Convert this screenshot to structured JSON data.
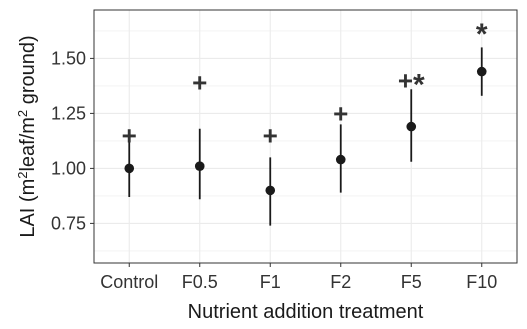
{
  "chart_data": {
    "type": "scatter",
    "categories": [
      "Control",
      "F0.5",
      "F1",
      "F2",
      "F5",
      "F10"
    ],
    "values": [
      1.0,
      1.01,
      0.9,
      1.04,
      1.19,
      1.44
    ],
    "lower": [
      0.87,
      0.86,
      0.74,
      0.89,
      1.03,
      1.33
    ],
    "upper": [
      1.13,
      1.18,
      1.05,
      1.2,
      1.36,
      1.55
    ],
    "annotations": [
      "+",
      "+",
      "+",
      "+",
      "+*",
      "*"
    ],
    "annotation_values": [
      1.15,
      1.39,
      1.15,
      1.25,
      1.4,
      1.63
    ],
    "xlabel": "Nutrient addition treatment",
    "ylabel_parts": [
      "LAI (m",
      "2",
      "leaf/m",
      "2",
      " ground)"
    ],
    "yticks": [
      0.75,
      1.0,
      1.25,
      1.5
    ],
    "ytick_labels": [
      "0.75",
      "1.00",
      "1.25",
      "1.50"
    ],
    "ylim": [
      0.57,
      1.72
    ],
    "grid": true,
    "colors": {
      "points": "#1a1a1a",
      "grid": "#ebebeb",
      "text": "#333333"
    }
  }
}
